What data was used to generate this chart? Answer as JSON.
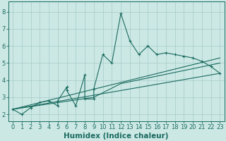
{
  "xlabel": "Humidex (Indice chaleur)",
  "ylabel": "",
  "bg_color": "#cce8e5",
  "line_color": "#1a6b5e",
  "grid_color": "#aad0cc",
  "axis_bg": "#cce8e5",
  "series1_x": [
    0,
    1,
    2,
    3,
    4,
    5,
    5,
    6,
    6,
    7,
    8,
    8,
    9,
    9,
    10,
    11,
    12,
    13,
    14,
    15,
    16,
    17,
    18,
    19,
    20,
    21,
    22,
    23
  ],
  "series1_y": [
    2.3,
    2.0,
    2.4,
    2.7,
    2.8,
    2.5,
    2.8,
    3.6,
    3.4,
    2.5,
    4.3,
    2.9,
    2.9,
    3.5,
    5.5,
    5.0,
    7.9,
    6.3,
    5.5,
    6.0,
    5.5,
    5.6,
    5.5,
    5.4,
    5.3,
    5.1,
    4.8,
    4.4
  ],
  "series2_x": [
    0,
    23
  ],
  "series2_y": [
    2.3,
    4.4
  ],
  "series3_x": [
    0,
    9,
    12,
    23
  ],
  "series3_y": [
    2.3,
    3.0,
    3.8,
    5.0
  ],
  "series4_x": [
    0,
    23
  ],
  "series4_y": [
    2.3,
    5.3
  ],
  "xlim": [
    -0.5,
    23.5
  ],
  "ylim": [
    1.6,
    8.6
  ],
  "xticks": [
    0,
    1,
    2,
    3,
    4,
    5,
    6,
    7,
    8,
    9,
    10,
    11,
    12,
    13,
    14,
    15,
    16,
    17,
    18,
    19,
    20,
    21,
    22,
    23
  ],
  "yticks": [
    2,
    3,
    4,
    5,
    6,
    7,
    8
  ],
  "tick_fontsize": 6,
  "label_fontsize": 7.5
}
